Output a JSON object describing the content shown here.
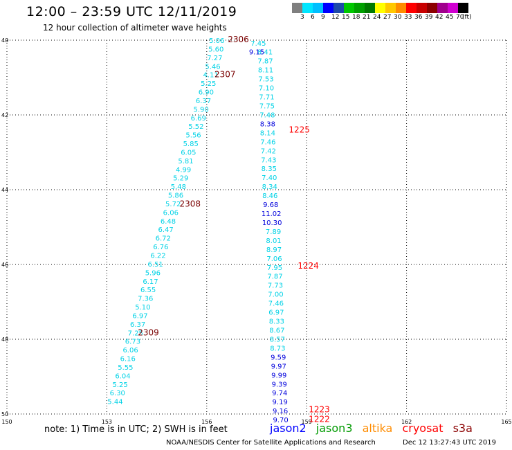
{
  "title": "12:00 – 23:59 UTC 12/11/2019",
  "subtitle": "12 hour collection of altimeter wave heights",
  "legend": {
    "colors": [
      "#7f7f7f",
      "#00e5ff",
      "#00bfff",
      "#0000ff",
      "#1e4aa8",
      "#00c800",
      "#00a000",
      "#007800",
      "#ffff00",
      "#ffc800",
      "#ff8c00",
      "#ff0000",
      "#c80000",
      "#8b0000",
      "#a0008c",
      "#d000d0",
      "#000000"
    ],
    "labels": [
      "3",
      "6",
      "9",
      "12",
      "15",
      "18",
      "21",
      "24",
      "27",
      "30",
      "33",
      "36",
      "39",
      "42",
      "45",
      "70",
      "(ft)"
    ]
  },
  "axes": {
    "lat_labels": [
      "40",
      "42",
      "44",
      "46",
      "48",
      "50"
    ],
    "lon_labels": [
      "150",
      "153",
      "156",
      "159",
      "162",
      "165"
    ]
  },
  "map_data": {
    "lat_range": [
      40,
      50
    ],
    "lon_range": [
      150,
      165
    ],
    "passes": [
      {
        "color": "#00d2e6",
        "points": [
          {
            "lon": 156.3,
            "lat": 40.0,
            "v": "5.06"
          },
          {
            "lon": 156.28,
            "lat": 40.23,
            "v": "5.60"
          },
          {
            "lon": 156.24,
            "lat": 40.46,
            "v": "7.27"
          },
          {
            "lon": 156.18,
            "lat": 40.69,
            "v": "5.46"
          },
          {
            "lon": 156.12,
            "lat": 40.92,
            "v": "4.11"
          },
          {
            "lon": 156.05,
            "lat": 41.15,
            "v": "5.25"
          },
          {
            "lon": 155.98,
            "lat": 41.38,
            "v": "6.90"
          },
          {
            "lon": 155.9,
            "lat": 41.61,
            "v": "6.37"
          },
          {
            "lon": 155.83,
            "lat": 41.84,
            "v": "5.90"
          },
          {
            "lon": 155.75,
            "lat": 42.07,
            "v": "6.69"
          },
          {
            "lon": 155.68,
            "lat": 42.3,
            "v": "5.52"
          },
          {
            "lon": 155.6,
            "lat": 42.53,
            "v": "5.56"
          },
          {
            "lon": 155.52,
            "lat": 42.76,
            "v": "5.85"
          },
          {
            "lon": 155.45,
            "lat": 42.99,
            "v": "6.05"
          },
          {
            "lon": 155.37,
            "lat": 43.22,
            "v": "5.81"
          },
          {
            "lon": 155.3,
            "lat": 43.45,
            "v": "4.99"
          },
          {
            "lon": 155.22,
            "lat": 43.68,
            "v": "5.29"
          },
          {
            "lon": 155.15,
            "lat": 43.91,
            "v": "5.48"
          },
          {
            "lon": 155.07,
            "lat": 44.14,
            "v": "5.86"
          },
          {
            "lon": 154.99,
            "lat": 44.37,
            "v": "5.72"
          },
          {
            "lon": 154.92,
            "lat": 44.6,
            "v": "6.06"
          },
          {
            "lon": 154.84,
            "lat": 44.83,
            "v": "6.48"
          },
          {
            "lon": 154.77,
            "lat": 45.06,
            "v": "6.47"
          },
          {
            "lon": 154.69,
            "lat": 45.29,
            "v": "6.72"
          },
          {
            "lon": 154.62,
            "lat": 45.52,
            "v": "6.76"
          },
          {
            "lon": 154.54,
            "lat": 45.75,
            "v": "6.22"
          },
          {
            "lon": 154.46,
            "lat": 45.98,
            "v": "6.51"
          },
          {
            "lon": 154.38,
            "lat": 46.21,
            "v": "5.96"
          },
          {
            "lon": 154.31,
            "lat": 46.44,
            "v": "6.17"
          },
          {
            "lon": 154.24,
            "lat": 46.67,
            "v": "6.55"
          },
          {
            "lon": 154.16,
            "lat": 46.9,
            "v": "7.36"
          },
          {
            "lon": 154.08,
            "lat": 47.13,
            "v": "5.10"
          },
          {
            "lon": 154.0,
            "lat": 47.36,
            "v": "6.97"
          },
          {
            "lon": 153.93,
            "lat": 47.59,
            "v": "6.37"
          },
          {
            "lon": 153.86,
            "lat": 47.82,
            "v": "7.25"
          },
          {
            "lon": 153.78,
            "lat": 48.05,
            "v": "6.73"
          },
          {
            "lon": 153.71,
            "lat": 48.28,
            "v": "6.06"
          },
          {
            "lon": 153.63,
            "lat": 48.51,
            "v": "6.16"
          },
          {
            "lon": 153.56,
            "lat": 48.74,
            "v": "5.55"
          },
          {
            "lon": 153.48,
            "lat": 48.97,
            "v": "6.04"
          },
          {
            "lon": 153.4,
            "lat": 49.2,
            "v": "5.25"
          },
          {
            "lon": 153.32,
            "lat": 49.43,
            "v": "6.30"
          },
          {
            "lon": 153.25,
            "lat": 49.66,
            "v": "5.44"
          }
        ]
      },
      {
        "color": "#00d2e6",
        "points": [
          {
            "lon": 157.55,
            "lat": 40.07,
            "v": "7.45"
          },
          {
            "lon": 157.75,
            "lat": 40.31,
            "v": "8.41"
          },
          {
            "lon": 157.76,
            "lat": 40.55,
            "v": "7.87"
          },
          {
            "lon": 157.77,
            "lat": 40.79,
            "v": "8.11"
          },
          {
            "lon": 157.78,
            "lat": 41.03,
            "v": "7.53"
          },
          {
            "lon": 157.79,
            "lat": 41.27,
            "v": "7.10"
          },
          {
            "lon": 157.8,
            "lat": 41.51,
            "v": "7.71"
          },
          {
            "lon": 157.81,
            "lat": 41.75,
            "v": "7.75"
          },
          {
            "lon": 157.82,
            "lat": 41.99,
            "v": "7.48"
          },
          {
            "lon": 157.83,
            "lat": 42.47,
            "v": "8.14"
          },
          {
            "lon": 157.84,
            "lat": 42.71,
            "v": "7.46"
          },
          {
            "lon": 157.85,
            "lat": 42.95,
            "v": "7.42"
          },
          {
            "lon": 157.86,
            "lat": 43.19,
            "v": "7.43"
          },
          {
            "lon": 157.87,
            "lat": 43.43,
            "v": "8.35"
          },
          {
            "lon": 157.88,
            "lat": 43.67,
            "v": "7.40"
          },
          {
            "lon": 157.89,
            "lat": 43.91,
            "v": "8.34"
          },
          {
            "lon": 157.9,
            "lat": 44.15,
            "v": "8.46"
          },
          {
            "lon": 158.0,
            "lat": 45.11,
            "v": "7.89"
          },
          {
            "lon": 158.01,
            "lat": 45.35,
            "v": "8.01"
          },
          {
            "lon": 158.02,
            "lat": 45.59,
            "v": "8.97"
          },
          {
            "lon": 158.03,
            "lat": 45.83,
            "v": "7.06"
          },
          {
            "lon": 158.04,
            "lat": 46.07,
            "v": "7.95"
          },
          {
            "lon": 158.05,
            "lat": 46.31,
            "v": "7.87"
          },
          {
            "lon": 158.06,
            "lat": 46.55,
            "v": "7.73"
          },
          {
            "lon": 158.07,
            "lat": 46.79,
            "v": "7.00"
          },
          {
            "lon": 158.08,
            "lat": 47.03,
            "v": "7.46"
          },
          {
            "lon": 158.09,
            "lat": 47.27,
            "v": "6.97"
          },
          {
            "lon": 158.1,
            "lat": 47.51,
            "v": "8.33"
          },
          {
            "lon": 158.11,
            "lat": 47.75,
            "v": "8.67"
          },
          {
            "lon": 158.12,
            "lat": 47.99,
            "v": "8.57"
          },
          {
            "lon": 158.13,
            "lat": 48.23,
            "v": "8.73"
          }
        ]
      },
      {
        "color": "#0000dc",
        "points": [
          {
            "lon": 157.5,
            "lat": 40.31,
            "v": "9.15"
          },
          {
            "lon": 157.83,
            "lat": 42.23,
            "v": "8.38"
          },
          {
            "lon": 157.92,
            "lat": 44.39,
            "v": "9.68"
          },
          {
            "lon": 157.94,
            "lat": 44.63,
            "v": "11.02"
          },
          {
            "lon": 157.96,
            "lat": 44.87,
            "v": "10.30"
          },
          {
            "lon": 158.15,
            "lat": 48.47,
            "v": "9.59"
          },
          {
            "lon": 158.16,
            "lat": 48.71,
            "v": "9.97"
          },
          {
            "lon": 158.17,
            "lat": 48.95,
            "v": "9.99"
          },
          {
            "lon": 158.18,
            "lat": 49.19,
            "v": "9.39"
          },
          {
            "lon": 158.19,
            "lat": 49.43,
            "v": "9.74"
          },
          {
            "lon": 158.2,
            "lat": 49.67,
            "v": "9.19"
          },
          {
            "lon": 158.21,
            "lat": 49.91,
            "v": "9.16"
          },
          {
            "lon": 158.22,
            "lat": 50.15,
            "v": "9.70"
          }
        ]
      }
    ],
    "time_labels": [
      {
        "lon": 156.95,
        "lat": 39.98,
        "text": "2306",
        "color": "#7a0000"
      },
      {
        "lon": 156.55,
        "lat": 40.92,
        "text": "2307",
        "color": "#7a0000"
      },
      {
        "lon": 155.5,
        "lat": 44.38,
        "text": "2308",
        "color": "#7a0000"
      },
      {
        "lon": 154.25,
        "lat": 47.82,
        "text": "2309",
        "color": "#7a0000"
      },
      {
        "lon": 158.78,
        "lat": 42.4,
        "text": "1225",
        "color": "#ff0000"
      },
      {
        "lon": 159.05,
        "lat": 46.04,
        "text": "1224",
        "color": "#ff0000"
      },
      {
        "lon": 159.38,
        "lat": 49.88,
        "text": "1223",
        "color": "#ff0000"
      },
      {
        "lon": 159.38,
        "lat": 50.14,
        "text": "1222",
        "color": "#ff0000"
      }
    ]
  },
  "note": "note: 1) Time is in UTC; 2) SWH is in feet",
  "satellites": [
    {
      "name": "jason2",
      "color": "#0000ff"
    },
    {
      "name": "jason3",
      "color": "#009a00"
    },
    {
      "name": "altika",
      "color": "#ff8c00"
    },
    {
      "name": "cryosat",
      "color": "#ff0000"
    },
    {
      "name": "s3a",
      "color": "#8b0000"
    }
  ],
  "footer": {
    "credit": "NOAA/NESDIS Center for Satellite Applications and Research",
    "timestamp": "Dec 12 13:27:43 UTC 2019"
  }
}
